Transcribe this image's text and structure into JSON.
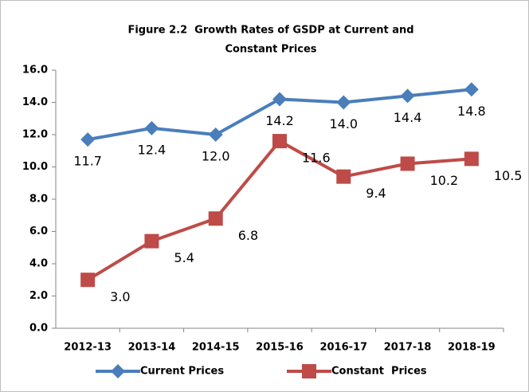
{
  "chart_data": {
    "type": "line",
    "title": [
      "Figure 2.2  Growth Rates of GSDP at Current and",
      "Constant Prices"
    ],
    "categories": [
      "2012-13",
      "2013-14",
      "2014-15",
      "2015-16",
      "2016-17",
      "2017-18",
      "2018-19"
    ],
    "series": [
      {
        "name": "Current Prices",
        "color": "#4a7ebb",
        "marker": "diamond",
        "values": [
          11.7,
          12.4,
          12.0,
          14.2,
          14.0,
          14.4,
          14.8
        ],
        "value_labels": [
          "11.7",
          "12.4",
          "12.0",
          "14.2",
          "14.0",
          "14.4",
          "14.8"
        ]
      },
      {
        "name": "Constant  Prices",
        "color": "#be4b48",
        "marker": "square",
        "values": [
          3.0,
          5.4,
          6.8,
          11.6,
          9.4,
          10.2,
          10.5
        ],
        "value_labels": [
          "3.0",
          "5.4",
          "6.8",
          "11.6",
          "9.4",
          "10.2",
          "10.5"
        ]
      }
    ],
    "ylim": [
      0,
      16
    ],
    "yticks": [
      {
        "value": 0,
        "label": "0.0"
      },
      {
        "value": 2,
        "label": "2.0"
      },
      {
        "value": 4,
        "label": "4.0"
      },
      {
        "value": 6,
        "label": "6.0"
      },
      {
        "value": 8,
        "label": "8.0"
      },
      {
        "value": 10,
        "label": "10.0"
      },
      {
        "value": 12,
        "label": "12.0"
      },
      {
        "value": 14,
        "label": "14.0"
      },
      {
        "value": 16,
        "label": "16.0"
      }
    ],
    "legend": "bottom"
  }
}
